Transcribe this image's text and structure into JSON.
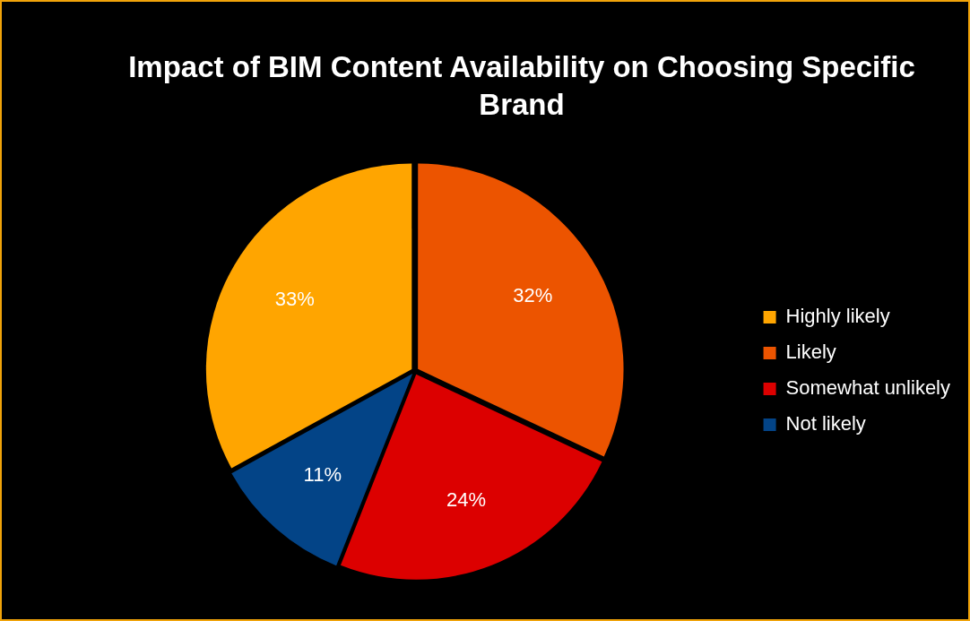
{
  "chart_data": {
    "type": "pie",
    "title": "Impact of BIM Content Availability on Choosing Specific Brand",
    "categories": [
      "Highly likely",
      "Likely",
      "Somewhat unlikely",
      "Not likely"
    ],
    "values": [
      33,
      32,
      24,
      11
    ],
    "value_labels": [
      "33%",
      "32%",
      "24%",
      "11%"
    ],
    "colors": [
      "#ffa500",
      "#ec5400",
      "#dc0000",
      "#034487"
    ],
    "legend": "right"
  }
}
